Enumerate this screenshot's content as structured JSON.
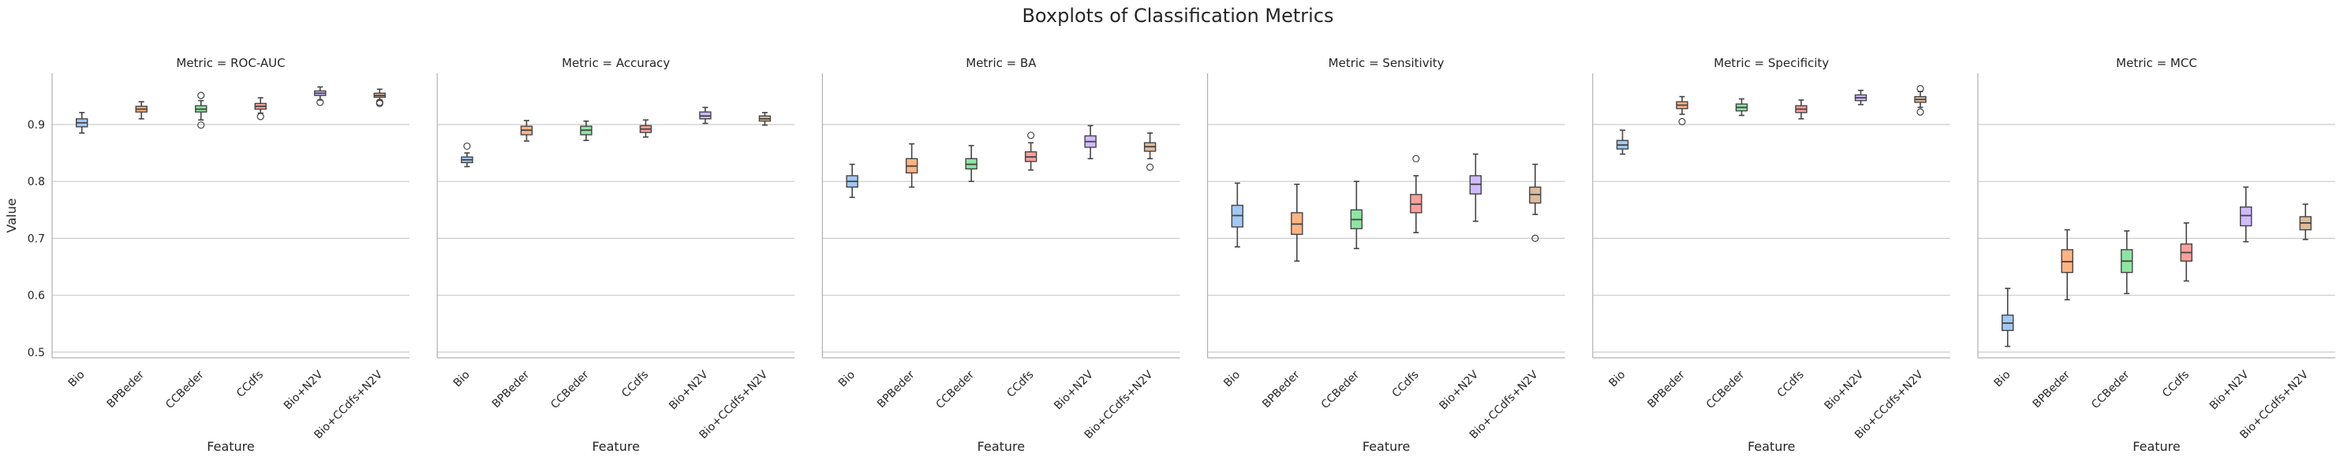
{
  "figure": {
    "suptitle": "Boxplots of Classification Metrics",
    "xlabel": "Feature",
    "ylabel": "Value",
    "palette": [
      "#a1c9f4",
      "#ffb482",
      "#8de5a1",
      "#ff9f9b",
      "#d0bbff",
      "#debb9b"
    ],
    "grid": "horizontal",
    "shared_y": true
  },
  "chart_data": [
    {
      "type": "box",
      "title": "Metric = ROC-AUC",
      "categories": [
        "Bio",
        "BPBeder",
        "CCBeder",
        "CCdfs",
        "Bio+N2V",
        "Bio+CCdfs+N2V"
      ],
      "ylim": [
        0.49,
        0.99
      ],
      "yticks": [
        0.5,
        0.6,
        0.7,
        0.8,
        0.9
      ],
      "boxes": [
        {
          "whislo": 0.885,
          "q1": 0.896,
          "med": 0.903,
          "q3": 0.91,
          "whishi": 0.921,
          "fliers": []
        },
        {
          "whislo": 0.91,
          "q1": 0.922,
          "med": 0.927,
          "q3": 0.932,
          "whishi": 0.94,
          "fliers": []
        },
        {
          "whislo": 0.908,
          "q1": 0.922,
          "med": 0.927,
          "q3": 0.933,
          "whishi": 0.942,
          "fliers": [
            0.899,
            0.951
          ]
        },
        {
          "whislo": 0.92,
          "q1": 0.927,
          "med": 0.932,
          "q3": 0.937,
          "whishi": 0.947,
          "fliers": [
            0.914
          ]
        },
        {
          "whislo": 0.943,
          "q1": 0.951,
          "med": 0.955,
          "q3": 0.959,
          "whishi": 0.966,
          "fliers": [
            0.939
          ]
        },
        {
          "whislo": 0.943,
          "q1": 0.948,
          "med": 0.951,
          "q3": 0.955,
          "whishi": 0.962,
          "fliers": [
            0.937,
            0.939
          ]
        }
      ]
    },
    {
      "type": "box",
      "title": "Metric = Accuracy",
      "categories": [
        "Bio",
        "BPBeder",
        "CCBeder",
        "CCdfs",
        "Bio+N2V",
        "Bio+CCdfs+N2V"
      ],
      "ylim": [
        0.49,
        0.99
      ],
      "yticks": [
        0.5,
        0.6,
        0.7,
        0.8,
        0.9
      ],
      "boxes": [
        {
          "whislo": 0.826,
          "q1": 0.833,
          "med": 0.838,
          "q3": 0.843,
          "whishi": 0.85,
          "fliers": [
            0.862
          ]
        },
        {
          "whislo": 0.871,
          "q1": 0.882,
          "med": 0.89,
          "q3": 0.897,
          "whishi": 0.907,
          "fliers": []
        },
        {
          "whislo": 0.872,
          "q1": 0.882,
          "med": 0.89,
          "q3": 0.897,
          "whishi": 0.906,
          "fliers": []
        },
        {
          "whislo": 0.878,
          "q1": 0.886,
          "med": 0.892,
          "q3": 0.898,
          "whishi": 0.908,
          "fliers": []
        },
        {
          "whislo": 0.902,
          "q1": 0.91,
          "med": 0.915,
          "q3": 0.922,
          "whishi": 0.93,
          "fliers": []
        },
        {
          "whislo": 0.899,
          "q1": 0.906,
          "med": 0.91,
          "q3": 0.915,
          "whishi": 0.921,
          "fliers": []
        }
      ]
    },
    {
      "type": "box",
      "title": "Metric = BA",
      "categories": [
        "Bio",
        "BPBeder",
        "CCBeder",
        "CCdfs",
        "Bio+N2V",
        "Bio+CCdfs+N2V"
      ],
      "ylim": [
        0.49,
        0.99
      ],
      "yticks": [
        0.5,
        0.6,
        0.7,
        0.8,
        0.9
      ],
      "boxes": [
        {
          "whislo": 0.772,
          "q1": 0.79,
          "med": 0.8,
          "q3": 0.81,
          "whishi": 0.83,
          "fliers": []
        },
        {
          "whislo": 0.79,
          "q1": 0.815,
          "med": 0.827,
          "q3": 0.84,
          "whishi": 0.866,
          "fliers": []
        },
        {
          "whislo": 0.8,
          "q1": 0.822,
          "med": 0.83,
          "q3": 0.84,
          "whishi": 0.863,
          "fliers": []
        },
        {
          "whislo": 0.82,
          "q1": 0.835,
          "med": 0.843,
          "q3": 0.852,
          "whishi": 0.868,
          "fliers": [
            0.881
          ]
        },
        {
          "whislo": 0.84,
          "q1": 0.86,
          "med": 0.87,
          "q3": 0.88,
          "whishi": 0.898,
          "fliers": []
        },
        {
          "whislo": 0.84,
          "q1": 0.853,
          "med": 0.861,
          "q3": 0.868,
          "whishi": 0.885,
          "fliers": [
            0.825
          ]
        }
      ]
    },
    {
      "type": "box",
      "title": "Metric = Sensitivity",
      "categories": [
        "Bio",
        "BPBeder",
        "CCBeder",
        "CCdfs",
        "Bio+N2V",
        "Bio+CCdfs+N2V"
      ],
      "ylim": [
        0.49,
        0.99
      ],
      "yticks": [
        0.5,
        0.6,
        0.7,
        0.8,
        0.9
      ],
      "boxes": [
        {
          "whislo": 0.685,
          "q1": 0.72,
          "med": 0.74,
          "q3": 0.758,
          "whishi": 0.797,
          "fliers": []
        },
        {
          "whislo": 0.66,
          "q1": 0.707,
          "med": 0.725,
          "q3": 0.745,
          "whishi": 0.795,
          "fliers": []
        },
        {
          "whislo": 0.682,
          "q1": 0.717,
          "med": 0.733,
          "q3": 0.75,
          "whishi": 0.8,
          "fliers": []
        },
        {
          "whislo": 0.71,
          "q1": 0.745,
          "med": 0.76,
          "q3": 0.777,
          "whishi": 0.81,
          "fliers": [
            0.84
          ]
        },
        {
          "whislo": 0.73,
          "q1": 0.778,
          "med": 0.795,
          "q3": 0.81,
          "whishi": 0.848,
          "fliers": []
        },
        {
          "whislo": 0.742,
          "q1": 0.762,
          "med": 0.777,
          "q3": 0.79,
          "whishi": 0.83,
          "fliers": [
            0.7
          ]
        }
      ]
    },
    {
      "type": "box",
      "title": "Metric = Specificity",
      "categories": [
        "Bio",
        "BPBeder",
        "CCBeder",
        "CCdfs",
        "Bio+N2V",
        "Bio+CCdfs+N2V"
      ],
      "ylim": [
        0.49,
        0.99
      ],
      "yticks": [
        0.5,
        0.6,
        0.7,
        0.8,
        0.9
      ],
      "boxes": [
        {
          "whislo": 0.848,
          "q1": 0.857,
          "med": 0.864,
          "q3": 0.872,
          "whishi": 0.89,
          "fliers": []
        },
        {
          "whislo": 0.918,
          "q1": 0.928,
          "med": 0.934,
          "q3": 0.94,
          "whishi": 0.949,
          "fliers": [
            0.905
          ]
        },
        {
          "whislo": 0.916,
          "q1": 0.924,
          "med": 0.93,
          "q3": 0.936,
          "whishi": 0.945,
          "fliers": []
        },
        {
          "whislo": 0.91,
          "q1": 0.921,
          "med": 0.927,
          "q3": 0.933,
          "whishi": 0.943,
          "fliers": []
        },
        {
          "whislo": 0.935,
          "q1": 0.942,
          "med": 0.947,
          "q3": 0.952,
          "whishi": 0.96,
          "fliers": []
        },
        {
          "whislo": 0.93,
          "q1": 0.939,
          "med": 0.944,
          "q3": 0.949,
          "whishi": 0.958,
          "fliers": [
            0.963,
            0.922
          ]
        }
      ]
    },
    {
      "type": "box",
      "title": "Metric = MCC",
      "categories": [
        "Bio",
        "BPBeder",
        "CCBeder",
        "CCdfs",
        "Bio+N2V",
        "Bio+CCdfs+N2V"
      ],
      "ylim": [
        0.49,
        0.99
      ],
      "yticks": [
        0.5,
        0.6,
        0.7,
        0.8,
        0.9
      ],
      "boxes": [
        {
          "whislo": 0.51,
          "q1": 0.538,
          "med": 0.551,
          "q3": 0.565,
          "whishi": 0.612,
          "fliers": []
        },
        {
          "whislo": 0.592,
          "q1": 0.64,
          "med": 0.659,
          "q3": 0.68,
          "whishi": 0.715,
          "fliers": []
        },
        {
          "whislo": 0.603,
          "q1": 0.64,
          "med": 0.66,
          "q3": 0.68,
          "whishi": 0.713,
          "fliers": []
        },
        {
          "whislo": 0.625,
          "q1": 0.66,
          "med": 0.675,
          "q3": 0.69,
          "whishi": 0.727,
          "fliers": []
        },
        {
          "whislo": 0.694,
          "q1": 0.722,
          "med": 0.74,
          "q3": 0.755,
          "whishi": 0.79,
          "fliers": []
        },
        {
          "whislo": 0.698,
          "q1": 0.715,
          "med": 0.727,
          "q3": 0.738,
          "whishi": 0.76,
          "fliers": []
        }
      ]
    }
  ]
}
